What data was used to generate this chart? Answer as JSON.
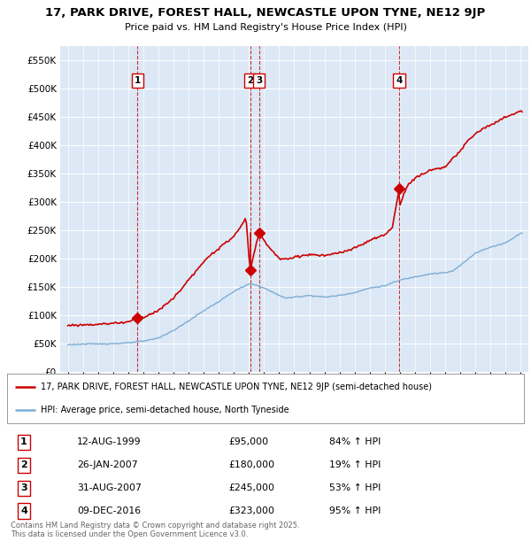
{
  "title_line1": "17, PARK DRIVE, FOREST HALL, NEWCASTLE UPON TYNE, NE12 9JP",
  "title_line2": "Price paid vs. HM Land Registry's House Price Index (HPI)",
  "bg_color": "#dce8f5",
  "red_color": "#cc0000",
  "blue_color": "#7aaed6",
  "sales": [
    {
      "date_num": 1999.62,
      "price": 95000,
      "label": "1"
    },
    {
      "date_num": 2007.07,
      "price": 180000,
      "label": "2"
    },
    {
      "date_num": 2007.67,
      "price": 245000,
      "label": "3"
    },
    {
      "date_num": 2016.94,
      "price": 323000,
      "label": "4"
    }
  ],
  "legend_red": "17, PARK DRIVE, FOREST HALL, NEWCASTLE UPON TYNE, NE12 9JP (semi-detached house)",
  "legend_blue": "HPI: Average price, semi-detached house, North Tyneside",
  "table": [
    {
      "num": "1",
      "date": "12-AUG-1999",
      "price": "£95,000",
      "hpi": "84% ↑ HPI"
    },
    {
      "num": "2",
      "date": "26-JAN-2007",
      "price": "£180,000",
      "hpi": "19% ↑ HPI"
    },
    {
      "num": "3",
      "date": "31-AUG-2007",
      "price": "£245,000",
      "hpi": "53% ↑ HPI"
    },
    {
      "num": "4",
      "date": "09-DEC-2016",
      "price": "£323,000",
      "hpi": "95% ↑ HPI"
    }
  ],
  "footer": "Contains HM Land Registry data © Crown copyright and database right 2025.\nThis data is licensed under the Open Government Licence v3.0.",
  "ylim": [
    0,
    575000
  ],
  "yticks": [
    0,
    50000,
    100000,
    150000,
    200000,
    250000,
    300000,
    350000,
    400000,
    450000,
    500000,
    550000
  ],
  "xlim": [
    1994.5,
    2025.5
  ],
  "xticks": [
    1995,
    1996,
    1997,
    1998,
    1999,
    2000,
    2001,
    2002,
    2003,
    2004,
    2005,
    2006,
    2007,
    2008,
    2009,
    2010,
    2011,
    2012,
    2013,
    2014,
    2015,
    2016,
    2017,
    2018,
    2019,
    2020,
    2021,
    2022,
    2023,
    2024,
    2025
  ],
  "hpi_waypoints_x": [
    1995.0,
    1996.0,
    1997.0,
    1998.0,
    1999.0,
    2000.0,
    2001.0,
    2002.0,
    2003.0,
    2004.0,
    2005.0,
    2006.0,
    2007.0,
    2007.5,
    2008.0,
    2009.0,
    2009.5,
    2010.0,
    2011.0,
    2012.0,
    2013.0,
    2014.0,
    2015.0,
    2016.0,
    2017.0,
    2018.0,
    2019.0,
    2020.0,
    2020.5,
    2021.0,
    2022.0,
    2023.0,
    2024.0,
    2025.0
  ],
  "hpi_waypoints_y": [
    48000,
    49000,
    49500,
    50000,
    51000,
    54000,
    60000,
    73000,
    90000,
    108000,
    124000,
    142000,
    155000,
    153000,
    148000,
    135000,
    130000,
    132000,
    135000,
    132000,
    135000,
    140000,
    148000,
    152000,
    162000,
    168000,
    173000,
    175000,
    178000,
    188000,
    210000,
    220000,
    228000,
    245000
  ],
  "red_waypoints_x": [
    1995.0,
    1996.0,
    1997.0,
    1998.0,
    1999.0,
    1999.62,
    2000.0,
    2001.0,
    2002.0,
    2003.0,
    2003.5,
    2004.0,
    2004.5,
    2005.0,
    2005.5,
    2006.0,
    2006.3,
    2006.5,
    2006.8,
    2007.07,
    2007.67,
    2008.0,
    2008.5,
    2009.0,
    2009.5,
    2010.0,
    2011.0,
    2012.0,
    2013.0,
    2014.0,
    2015.0,
    2016.0,
    2016.5,
    2016.94,
    2017.0,
    2017.5,
    2018.0,
    2019.0,
    2020.0,
    2021.0,
    2021.5,
    2022.0,
    2022.5,
    2023.0,
    2023.5,
    2024.0,
    2024.5,
    2025.0
  ],
  "red_waypoints_y": [
    82000,
    83000,
    84000,
    86000,
    88000,
    95000,
    96000,
    108000,
    130000,
    162000,
    178000,
    193000,
    208000,
    218000,
    228000,
    240000,
    250000,
    258000,
    272000,
    180000,
    245000,
    232000,
    215000,
    200000,
    198000,
    203000,
    207000,
    205000,
    210000,
    218000,
    232000,
    242000,
    255000,
    323000,
    295000,
    330000,
    342000,
    356000,
    362000,
    390000,
    408000,
    420000,
    430000,
    435000,
    442000,
    450000,
    455000,
    460000
  ]
}
